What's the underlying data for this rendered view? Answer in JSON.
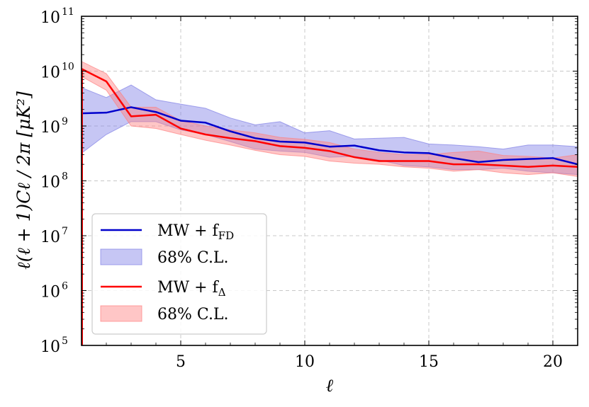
{
  "chart_data": {
    "type": "line",
    "xlabel": "ℓ",
    "ylabel": "ℓ(ℓ + 1)Cℓ / 2π [μK²]",
    "xlim": [
      1,
      21
    ],
    "ylim": [
      100000,
      100000000000
    ],
    "yscale": "log",
    "grid": true,
    "legend_position": "lower-left",
    "x_ticks": [
      5,
      10,
      15,
      20
    ],
    "y_ticks": [
      {
        "value": 100000,
        "base": "10",
        "exp": "5"
      },
      {
        "value": 1000000,
        "base": "10",
        "exp": "6"
      },
      {
        "value": 10000000,
        "base": "10",
        "exp": "7"
      },
      {
        "value": 100000000,
        "base": "10",
        "exp": "8"
      },
      {
        "value": 1000000000,
        "base": "10",
        "exp": "9"
      },
      {
        "value": 10000000000,
        "base": "10",
        "exp": "10"
      },
      {
        "value": 100000000000,
        "base": "10",
        "exp": "11"
      }
    ],
    "x": [
      1,
      2,
      3,
      4,
      5,
      6,
      7,
      8,
      9,
      10,
      11,
      12,
      13,
      14,
      15,
      16,
      17,
      18,
      19,
      20,
      21
    ],
    "series": [
      {
        "name": "MW + f_FD",
        "legend_main": "MW + f",
        "legend_sub": "FD",
        "color": "#0000cc",
        "band_color": "#8080e6",
        "band_label": "68% C.L.",
        "values": [
          1700000000.0,
          1750000000.0,
          2200000000.0,
          1800000000.0,
          1250000000.0,
          1150000000.0,
          800000000.0,
          600000000.0,
          520000000.0,
          500000000.0,
          420000000.0,
          440000000.0,
          360000000.0,
          330000000.0,
          320000000.0,
          260000000.0,
          220000000.0,
          240000000.0,
          250000000.0,
          260000000.0,
          200000000.0
        ],
        "lower": [
          320000000.0,
          700000000.0,
          1200000000.0,
          1200000000.0,
          850000000.0,
          700000000.0,
          520000000.0,
          380000000.0,
          350000000.0,
          330000000.0,
          270000000.0,
          280000000.0,
          240000000.0,
          190000000.0,
          180000000.0,
          160000000.0,
          160000000.0,
          170000000.0,
          150000000.0,
          140000000.0,
          130000000.0
        ],
        "upper": [
          5000000000.0,
          3300000000.0,
          5600000000.0,
          3000000000.0,
          2500000000.0,
          2100000000.0,
          1400000000.0,
          1050000000.0,
          1200000000.0,
          750000000.0,
          820000000.0,
          580000000.0,
          600000000.0,
          620000000.0,
          470000000.0,
          450000000.0,
          420000000.0,
          380000000.0,
          450000000.0,
          450000000.0,
          420000000.0
        ]
      },
      {
        "name": "MW + f_Δ",
        "legend_main": "MW + f",
        "legend_sub": "Δ",
        "color": "#ff0000",
        "band_color": "#ff8080",
        "band_label": "68% C.L.",
        "values": [
          11000000000.0,
          6500000000.0,
          1500000000.0,
          1600000000.0,
          900000000.0,
          700000000.0,
          600000000.0,
          530000000.0,
          430000000.0,
          400000000.0,
          350000000.0,
          270000000.0,
          230000000.0,
          230000000.0,
          230000000.0,
          200000000.0,
          200000000.0,
          190000000.0,
          180000000.0,
          190000000.0,
          180000000.0
        ],
        "lower": [
          8000000000.0,
          4500000000.0,
          1000000000.0,
          900000000.0,
          700000000.0,
          550000000.0,
          450000000.0,
          360000000.0,
          300000000.0,
          280000000.0,
          230000000.0,
          210000000.0,
          200000000.0,
          180000000.0,
          170000000.0,
          150000000.0,
          160000000.0,
          140000000.0,
          130000000.0,
          140000000.0,
          120000000.0
        ],
        "upper": [
          15000000000.0,
          9000000000.0,
          2200000000.0,
          2200000000.0,
          1250000000.0,
          1000000000.0,
          850000000.0,
          750000000.0,
          620000000.0,
          570000000.0,
          500000000.0,
          380000000.0,
          330000000.0,
          300000000.0,
          300000000.0,
          330000000.0,
          350000000.0,
          290000000.0,
          280000000.0,
          260000000.0,
          300000000.0
        ]
      }
    ]
  }
}
